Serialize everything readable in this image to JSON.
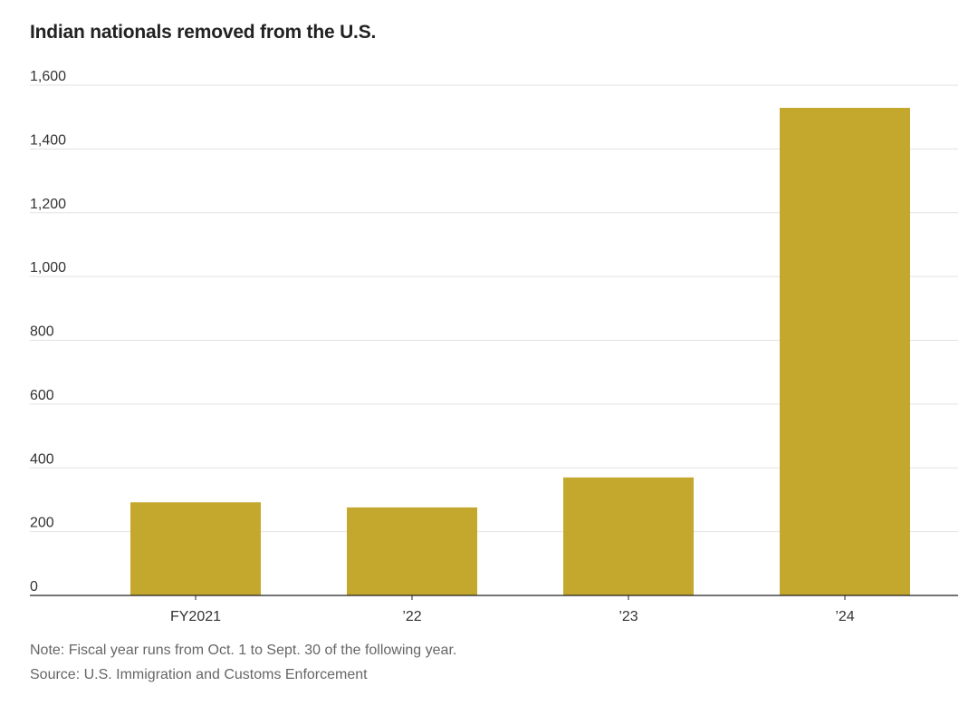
{
  "chart_data": {
    "type": "bar",
    "title": "Indian nationals removed from the U.S.",
    "categories": [
      "FY2021",
      "’22",
      "’23",
      "’24"
    ],
    "values": [
      292,
      276,
      370,
      1529
    ],
    "ylim": [
      0,
      1600
    ],
    "yticks": [
      0,
      200,
      400,
      600,
      800,
      1000,
      1200,
      1400,
      1600
    ],
    "ytick_labels": [
      "0",
      "200",
      "400",
      "600",
      "800",
      "1,000",
      "1,200",
      "1,400",
      "1,600"
    ],
    "xlabel": "",
    "ylabel": "",
    "grid": true,
    "bar_color": "#C4A82E",
    "gridline_color": "#E2E2E2",
    "note": "Note: Fiscal year runs from Oct. 1 to Sept. 30 of the following year.",
    "source": "Source: U.S. Immigration and Customs Enforcement"
  }
}
